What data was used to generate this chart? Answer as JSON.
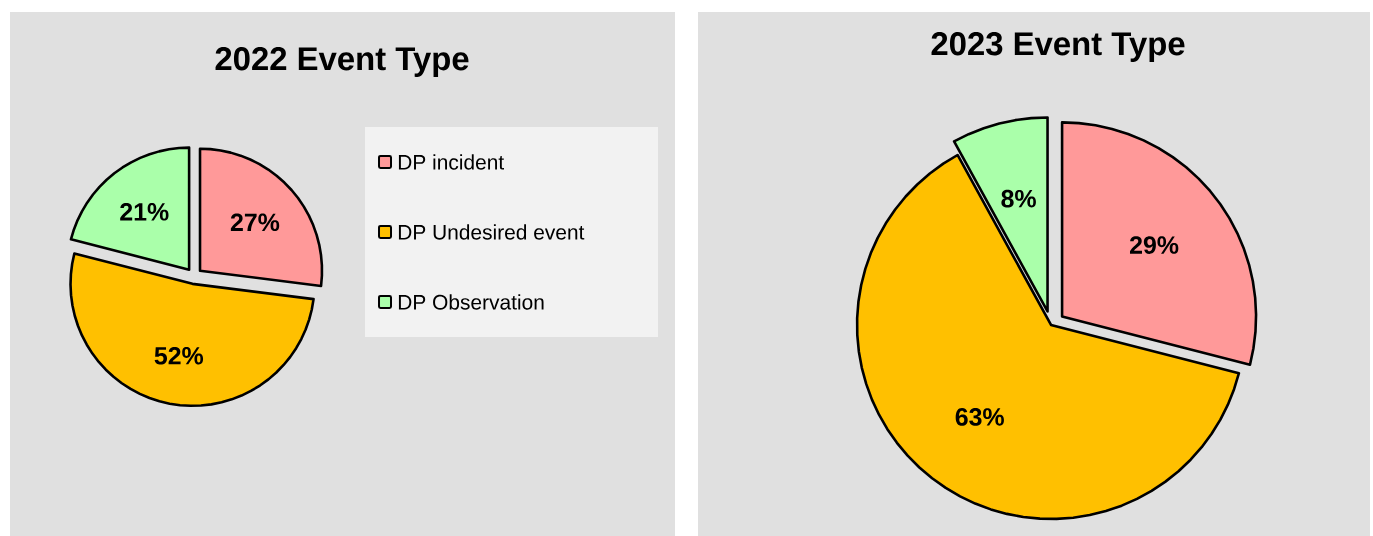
{
  "chart_data": [
    {
      "type": "pie",
      "title": "2022 Event Type",
      "categories": [
        "DP incident",
        "DP Undesired event",
        "DP Observation"
      ],
      "values": [
        27,
        52,
        21
      ],
      "colors": [
        "#ff9999",
        "#ffc000",
        "#aaffaa"
      ],
      "value_labels": [
        "27%",
        "52%",
        "21%"
      ],
      "legend": "right"
    },
    {
      "type": "pie",
      "title": "2023 Event Type",
      "categories": [
        null,
        null,
        null
      ],
      "values": [
        29,
        63,
        8
      ],
      "colors": [
        "#ff9999",
        "#ffc000",
        "#aaffaa"
      ],
      "value_labels": [
        "29%",
        "63%",
        "8%"
      ]
    }
  ]
}
